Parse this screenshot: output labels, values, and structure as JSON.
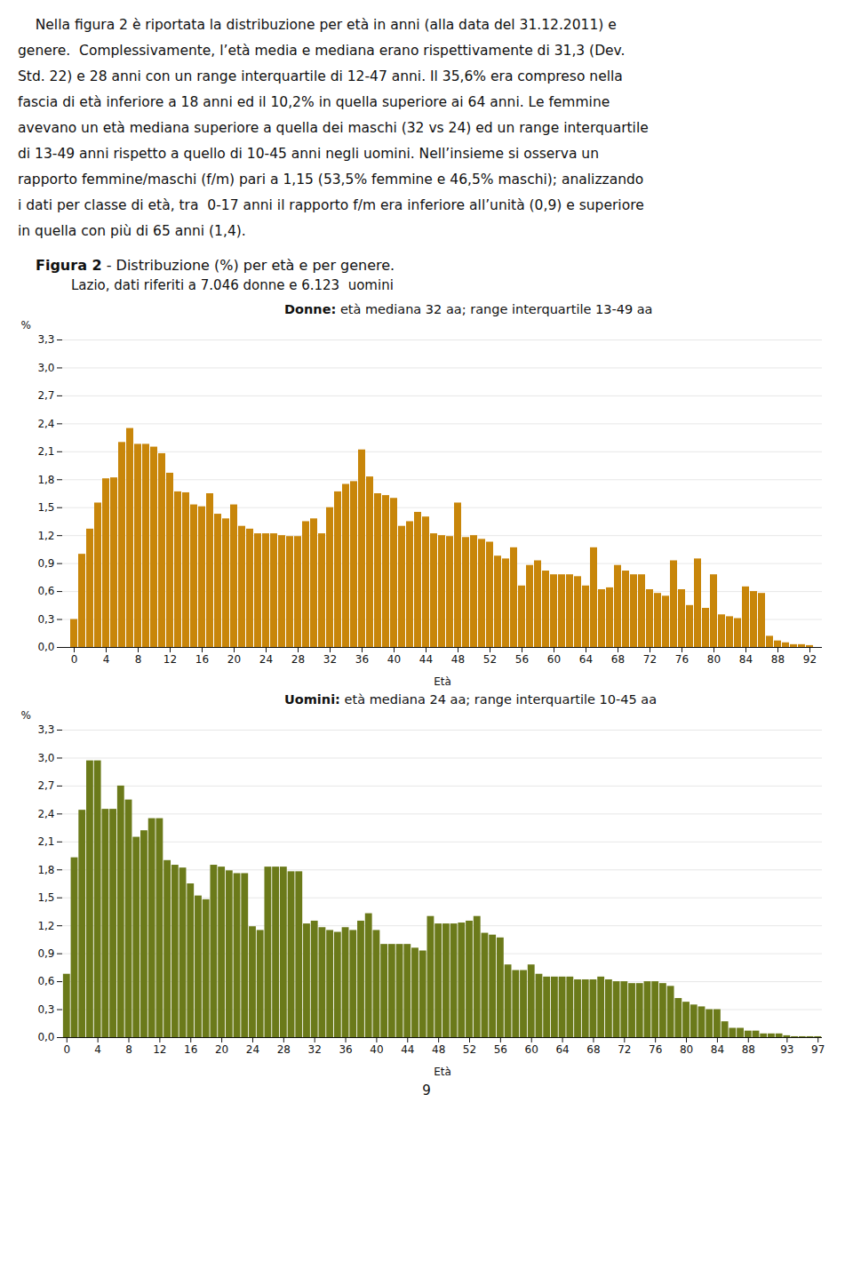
{
  "title": "Figura 2 - Distribuzione (%) per età e per genere.",
  "subtitle": "Lazio, dati riferiti a 7.046 donne e 6.123  uomini",
  "paragraph": [
    "    Nella figura 2 è riportata la distribuzione per età in anni (alla data del 31.12.2011) e",
    "genere.  Complessivamente, l’età media e mediana erano rispettivamente di 31,3 (Dev.",
    "Std. 22) e 28 anni con un range interquartile di 12-47 anni. Il 35,6% era compreso nella",
    "fascia di età inferiore a 18 anni ed il 10,2% in quella superiore ai 64 anni. Le femmine",
    "avevano un età mediana superiore a quella dei maschi (32 vs 24) ed un range interquartile",
    "di 13-49 anni rispetto a quello di 10-45 anni negli uomini. Nell’insieme si osserva un",
    "rapporto femmine/maschi (f/m) pari a 1,15 (53,5% femmine e 46,5% maschi); analizzando",
    "i dati per classe di età, tra  0-17 anni il rapporto f/m era inferiore all’unità (0,9) e superiore",
    "in quella con più di 65 anni (1,4)."
  ],
  "page_number": "9",
  "chart_data": [
    {
      "type": "bar",
      "annotations": [
        "Donne: età mediana 32 aa; range interquartile 13-49 aa"
      ],
      "xlabel": "Età",
      "ylabel": "%",
      "color": "#C8860A",
      "grid": true,
      "ylim": [
        0.0,
        3.3
      ],
      "yticks": [
        {
          "value": 0.0,
          "label": "0,0"
        },
        {
          "value": 0.3,
          "label": "0,3"
        },
        {
          "value": 0.6,
          "label": "0,6"
        },
        {
          "value": 0.9,
          "label": "0,9"
        },
        {
          "value": 1.2,
          "label": "1,2"
        },
        {
          "value": 1.5,
          "label": "1,5"
        },
        {
          "value": 1.8,
          "label": "1,8"
        },
        {
          "value": 2.1,
          "label": "2,1"
        },
        {
          "value": 2.4,
          "label": "2,4"
        },
        {
          "value": 2.7,
          "label": "2,7"
        },
        {
          "value": 3.0,
          "label": "3,0"
        },
        {
          "value": 3.3,
          "label": "3,3"
        }
      ],
      "categories": [
        "0",
        null,
        null,
        null,
        "4",
        null,
        null,
        null,
        "8",
        null,
        null,
        null,
        "12",
        null,
        null,
        null,
        "16",
        null,
        null,
        null,
        "20",
        null,
        null,
        null,
        "24",
        null,
        null,
        null,
        "28",
        null,
        null,
        null,
        "32",
        null,
        null,
        null,
        "36",
        null,
        null,
        null,
        "40",
        null,
        null,
        null,
        "44",
        null,
        null,
        null,
        "48",
        null,
        null,
        null,
        "52",
        null,
        null,
        null,
        "56",
        null,
        null,
        null,
        "60",
        null,
        null,
        null,
        "64",
        null,
        null,
        null,
        "68",
        null,
        null,
        null,
        "72",
        null,
        null,
        null,
        "76",
        null,
        null,
        null,
        "80",
        null,
        null,
        null,
        "84",
        null,
        null,
        null,
        "88",
        null,
        null,
        null,
        "92"
      ],
      "values": [
        0.3,
        1.0,
        1.27,
        1.55,
        1.81,
        1.82,
        2.2,
        2.35,
        2.18,
        2.18,
        2.15,
        2.08,
        1.87,
        1.67,
        1.66,
        1.53,
        1.51,
        1.65,
        1.43,
        1.38,
        1.53,
        1.3,
        1.27,
        1.22,
        1.22,
        1.22,
        1.2,
        1.19,
        1.19,
        1.35,
        1.38,
        1.22,
        1.5,
        1.67,
        1.75,
        1.78,
        2.12,
        1.83,
        1.65,
        1.63,
        1.6,
        1.3,
        1.35,
        1.45,
        1.4,
        1.22,
        1.2,
        1.19,
        1.55,
        1.18,
        1.2,
        1.16,
        1.13,
        0.98,
        0.95,
        1.07,
        0.66,
        0.88,
        0.93,
        0.82,
        0.78,
        0.78,
        0.78,
        0.76,
        0.66,
        1.07,
        0.62,
        0.64,
        0.88,
        0.82,
        0.78,
        0.78,
        0.62,
        0.58,
        0.55,
        0.93,
        0.62,
        0.45,
        0.95,
        0.42,
        0.78,
        0.35,
        0.33,
        0.31,
        0.65,
        0.6,
        0.58,
        0.12,
        0.07,
        0.05,
        0.03,
        0.03,
        0.02
      ]
    },
    {
      "type": "bar",
      "annotations": [
        "Uomini: età mediana 24 aa; range interquartile 10-45 aa"
      ],
      "xlabel": "Età",
      "ylabel": "%",
      "color": "#6B7A1A",
      "grid": true,
      "ylim": [
        0.0,
        3.3
      ],
      "yticks": [
        {
          "value": 0.0,
          "label": "0,0"
        },
        {
          "value": 0.3,
          "label": "0,3"
        },
        {
          "value": 0.6,
          "label": "0,6"
        },
        {
          "value": 0.9,
          "label": "0,9"
        },
        {
          "value": 1.2,
          "label": "1,2"
        },
        {
          "value": 1.5,
          "label": "1,5"
        },
        {
          "value": 1.8,
          "label": "1,8"
        },
        {
          "value": 2.1,
          "label": "2,1"
        },
        {
          "value": 2.4,
          "label": "2,4"
        },
        {
          "value": 2.7,
          "label": "2,7"
        },
        {
          "value": 3.0,
          "label": "3,0"
        },
        {
          "value": 3.3,
          "label": "3,3"
        }
      ],
      "categories": [
        "0",
        null,
        null,
        null,
        "4",
        null,
        null,
        null,
        "8",
        null,
        null,
        null,
        "12",
        null,
        null,
        null,
        "16",
        null,
        null,
        null,
        "20",
        null,
        null,
        null,
        "24",
        null,
        null,
        null,
        "28",
        null,
        null,
        null,
        "32",
        null,
        null,
        null,
        "36",
        null,
        null,
        null,
        "40",
        null,
        null,
        null,
        "44",
        null,
        null,
        null,
        "48",
        null,
        null,
        null,
        "52",
        null,
        null,
        null,
        "56",
        null,
        null,
        null,
        "60",
        null,
        null,
        null,
        "64",
        null,
        null,
        null,
        "68",
        null,
        null,
        null,
        "72",
        null,
        null,
        null,
        "76",
        null,
        null,
        null,
        "80",
        null,
        null,
        null,
        "84",
        null,
        null,
        null,
        "88",
        null,
        null,
        null,
        null,
        "93",
        null,
        null,
        null,
        "97"
      ],
      "values": [
        0.68,
        1.93,
        2.44,
        2.97,
        2.97,
        2.45,
        2.45,
        2.7,
        2.55,
        2.15,
        2.22,
        2.35,
        2.35,
        1.9,
        1.85,
        1.82,
        1.65,
        1.52,
        1.48,
        1.85,
        1.83,
        1.79,
        1.76,
        1.76,
        1.19,
        1.15,
        1.83,
        1.83,
        1.83,
        1.78,
        1.78,
        1.22,
        1.25,
        1.18,
        1.15,
        1.13,
        1.18,
        1.15,
        1.25,
        1.33,
        1.15,
        1.0,
        1.0,
        1.0,
        1.0,
        0.96,
        0.93,
        1.3,
        1.22,
        1.22,
        1.22,
        1.23,
        1.25,
        1.3,
        1.12,
        1.1,
        1.07,
        0.78,
        0.72,
        0.72,
        0.78,
        0.68,
        0.65,
        0.65,
        0.65,
        0.65,
        0.62,
        0.62,
        0.62,
        0.65,
        0.62,
        0.6,
        0.6,
        0.58,
        0.58,
        0.6,
        0.6,
        0.58,
        0.55,
        0.42,
        0.38,
        0.35,
        0.33,
        0.3,
        0.3,
        0.17,
        0.1,
        0.1,
        0.07,
        0.07,
        0.04,
        0.04,
        0.04,
        0.02,
        0.01,
        0.01,
        0.01,
        0.01
      ]
    }
  ]
}
